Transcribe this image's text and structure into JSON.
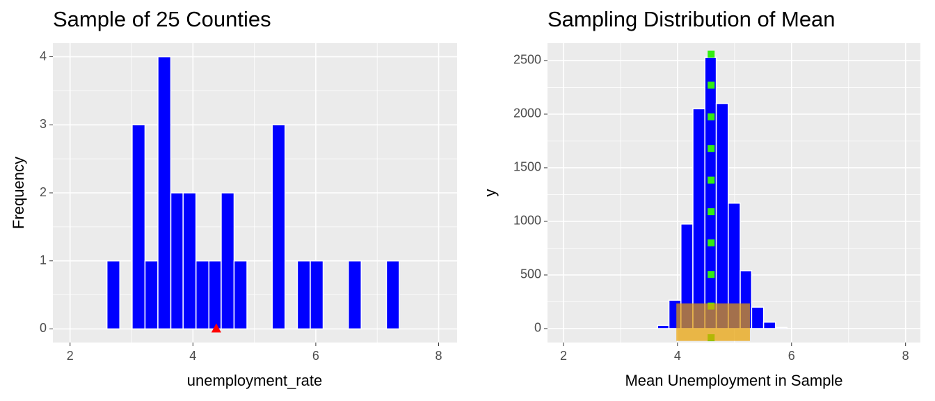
{
  "chart_data": [
    {
      "type": "histogram",
      "title": "Sample of 25 Counties",
      "x_label": "unemployment_rate",
      "y_label": "Frequency",
      "bins": [
        2.6,
        2.81,
        3.01,
        3.22,
        3.43,
        3.64,
        3.84,
        4.05,
        4.26,
        4.46,
        4.67,
        4.88,
        5.08,
        5.29,
        5.5,
        5.7,
        5.91,
        6.12,
        6.32,
        6.53,
        6.74,
        6.95,
        7.15,
        7.36
      ],
      "values": [
        1,
        0,
        3,
        1,
        4,
        2,
        2,
        1,
        1,
        2,
        1,
        0,
        0,
        3,
        0,
        1,
        1,
        0,
        0,
        1,
        0,
        0,
        1
      ],
      "color": "#0000ff",
      "points": {
        "x": [
          4.38
        ],
        "y": [
          0
        ],
        "color": "#ff0000",
        "shape": "triangle"
      },
      "xlim": [
        1.72,
        8.3
      ],
      "xticks": [
        2,
        4,
        6,
        8
      ],
      "ylim": [
        -0.2,
        4.2
      ],
      "yticks": [
        0,
        1,
        2,
        3,
        4
      ],
      "grid": true
    },
    {
      "type": "histogram",
      "title": "Sampling Distribution of Mean",
      "x_label": "Mean Unemployment in Sample",
      "y_label": "y",
      "bins": [
        3.65,
        3.85,
        4.06,
        4.27,
        4.48,
        4.68,
        4.89,
        5.1,
        5.3,
        5.51,
        5.72,
        5.92
      ],
      "values": [
        30,
        265,
        975,
        2050,
        2530,
        2100,
        1170,
        540,
        200,
        60,
        10
      ],
      "color": "#0000ff",
      "points": {
        "x": [
          4.59,
          4.59,
          4.59,
          4.59,
          4.59,
          4.59,
          4.59,
          4.59,
          4.59,
          4.59
        ],
        "y": [
          2560,
          2270,
          1975,
          1680,
          1385,
          1090,
          800,
          505,
          210,
          -85
        ],
        "color": "#33ee11",
        "shape": "square"
      },
      "rect": {
        "x": [
          3.98,
          5.27
        ],
        "y": [
          -115,
          235
        ],
        "color": "#e8a000"
      },
      "xlim": [
        1.72,
        8.26
      ],
      "xticks": [
        2,
        4,
        6,
        8
      ],
      "ylim": [
        -130,
        2662
      ],
      "yticks": [
        0,
        500,
        1000,
        1500,
        2000,
        2500
      ],
      "grid": true
    }
  ]
}
